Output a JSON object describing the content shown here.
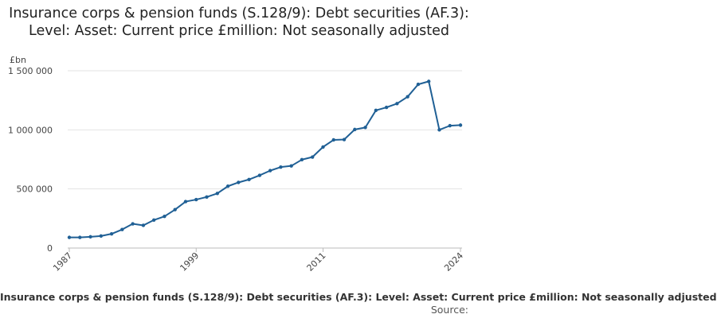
{
  "chart_data": {
    "type": "line",
    "title": "Insurance corps & pension funds (S.128/9): Debt securities (AF.3): Level: Asset: Current price £million: Not seasonally adjusted",
    "ylabel": "£bn",
    "xlabel": "",
    "ylim": [
      0,
      1500000
    ],
    "yticks": [
      0,
      500000,
      1000000,
      1500000
    ],
    "ytick_labels": [
      "0",
      "500 000",
      "1 000 000",
      "1 500 000"
    ],
    "xlim": [
      1987,
      2024
    ],
    "xticks": [
      1987,
      1999,
      2011,
      2024
    ],
    "xtick_labels": [
      "1987",
      "1999",
      "2011",
      "2024"
    ],
    "grid": true,
    "line_color": "#206095",
    "x": [
      1987,
      1988,
      1989,
      1990,
      1991,
      1992,
      1993,
      1994,
      1995,
      1996,
      1997,
      1998,
      1999,
      2000,
      2001,
      2002,
      2003,
      2004,
      2005,
      2006,
      2007,
      2008,
      2009,
      2010,
      2011,
      2012,
      2013,
      2014,
      2015,
      2016,
      2017,
      2018,
      2019,
      2020,
      2021,
      2022,
      2023,
      2024
    ],
    "series": [
      {
        "values": [
          90000,
          90000,
          95000,
          102000,
          120000,
          157000,
          205000,
          192000,
          237000,
          268000,
          325000,
          393000,
          410000,
          432000,
          462000,
          523000,
          555000,
          580000,
          615000,
          655000,
          685000,
          695000,
          748000,
          770000,
          855000,
          915000,
          918000,
          1003000,
          1020000,
          1165000,
          1190000,
          1222000,
          1280000,
          1385000,
          1410000,
          1000000,
          1035000,
          1040000
        ]
      }
    ]
  },
  "footer": {
    "caption": "Insurance corps & pension funds (S.128/9): Debt securities (AF.3): Level: Asset: Current price £million: Not seasonally adjusted",
    "source": "Source:"
  }
}
